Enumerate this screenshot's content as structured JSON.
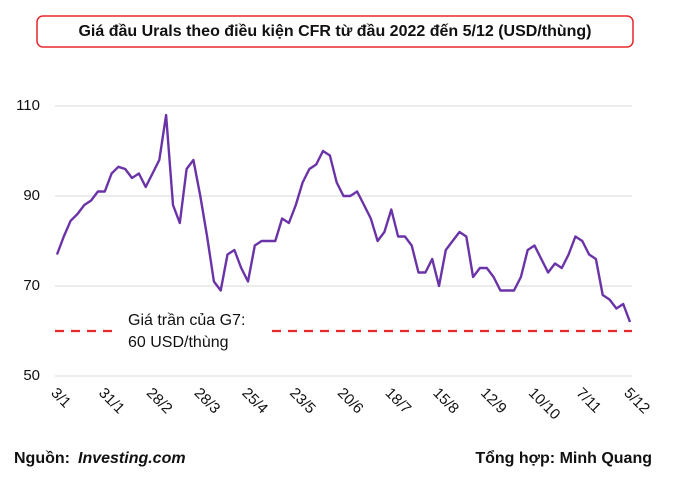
{
  "chart_data": {
    "type": "line",
    "title": "Giá đầu Urals theo điều kiện CFR từ đầu 2022 đến 5/12 (USD/thùng)",
    "categories": [
      "3/1",
      null,
      null,
      null,
      null,
      null,
      null,
      "31/1",
      null,
      null,
      null,
      null,
      null,
      null,
      "28/2",
      null,
      null,
      null,
      null,
      null,
      null,
      "28/3",
      null,
      null,
      null,
      null,
      null,
      null,
      "25/4",
      null,
      null,
      null,
      null,
      null,
      null,
      "23/5",
      null,
      null,
      null,
      null,
      null,
      null,
      "20/6",
      null,
      null,
      null,
      null,
      null,
      null,
      "18/7",
      null,
      null,
      null,
      null,
      null,
      null,
      "15/8",
      null,
      null,
      null,
      null,
      null,
      null,
      "12/9",
      null,
      null,
      null,
      null,
      null,
      null,
      "10/10",
      null,
      null,
      null,
      null,
      null,
      null,
      "7/11",
      null,
      null,
      null,
      null,
      null,
      null,
      "5/12"
    ],
    "series": [
      {
        "name": "Urals",
        "color": "#6a34a8",
        "values": [
          77,
          81,
          84.5,
          86,
          88,
          89,
          91,
          91,
          95,
          96.5,
          96,
          94,
          95,
          92,
          95,
          98,
          108,
          88,
          84,
          96,
          98,
          90,
          81,
          71,
          69,
          77,
          78,
          74,
          71,
          79,
          80,
          80,
          80,
          85,
          84,
          88,
          93,
          96,
          97,
          100,
          99,
          93,
          90,
          90,
          91,
          88,
          85,
          80,
          82,
          87,
          81,
          81,
          79,
          73,
          73,
          76,
          70,
          78,
          80,
          82,
          81,
          72,
          74,
          74,
          72,
          69,
          69,
          69,
          72,
          78,
          79,
          76,
          73,
          75,
          74,
          77,
          81,
          80,
          77,
          76,
          68,
          67,
          65,
          66,
          62
        ]
      }
    ],
    "ylim": [
      50,
      110
    ],
    "yticks": [
      50,
      70,
      90,
      110
    ],
    "grid": true,
    "reference_line": {
      "value": 60,
      "color": "#e8282b",
      "label": [
        "Giá trần của G7:",
        "60 USD/thùng"
      ]
    },
    "source_label": "Nguồn:",
    "source": "Investing.com",
    "credit": "Tổng hợp: Minh Quang"
  }
}
